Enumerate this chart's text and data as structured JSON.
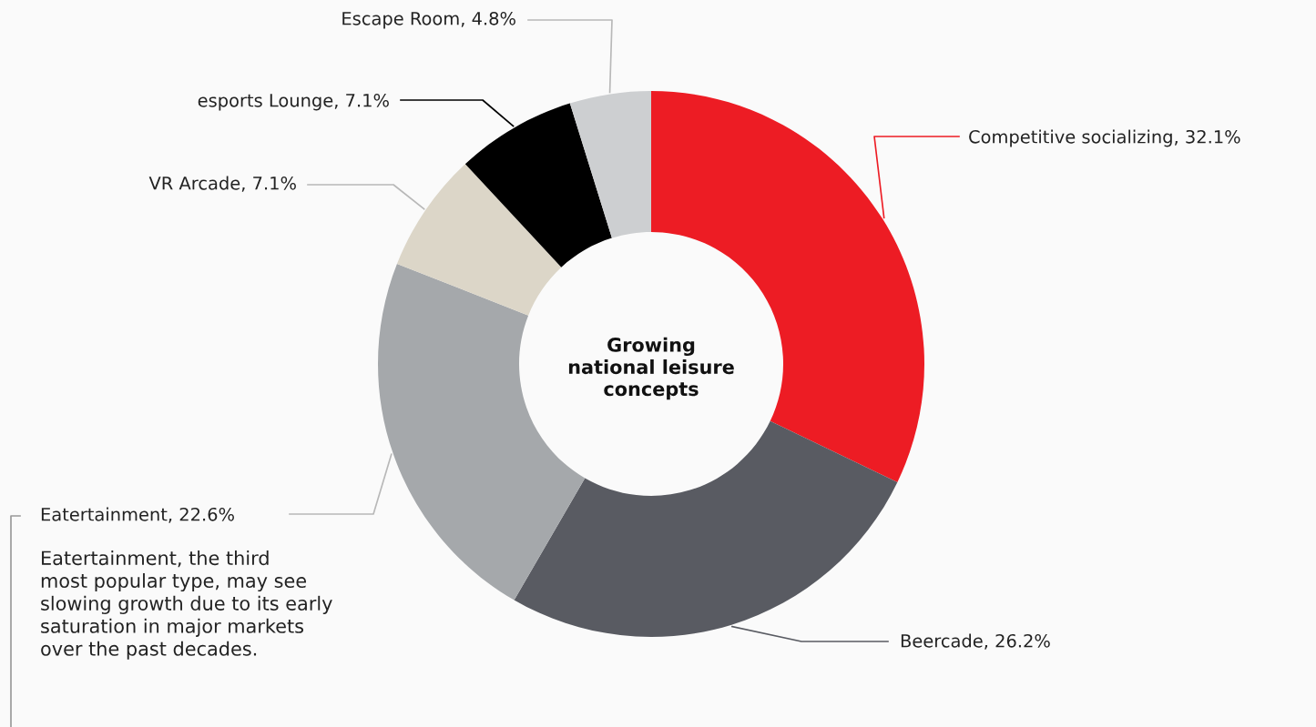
{
  "chart_data": {
    "type": "donut",
    "title": "Growing\nnational leisure\nconcepts",
    "categories": [
      "Competitive socializing",
      "Beercade",
      "Eatertainment",
      "VR Arcade",
      "esports Lounge",
      "Escape Room"
    ],
    "values": [
      32.1,
      26.2,
      22.6,
      7.1,
      7.1,
      4.8
    ],
    "colors": [
      "#ed1c24",
      "#595b62",
      "#a5a8ab",
      "#dcd6c8",
      "#000000",
      "#cdcfd1"
    ],
    "value_labels": [
      "32.1%",
      "26.2%",
      "22.6%",
      "7.1%",
      "7.1%",
      "4.8%"
    ],
    "annotations": [
      "Eatertainment, the third\nmost popular type, may see\nslowing growth due to its early\nsaturation in major markets\nover the past decades."
    ]
  }
}
